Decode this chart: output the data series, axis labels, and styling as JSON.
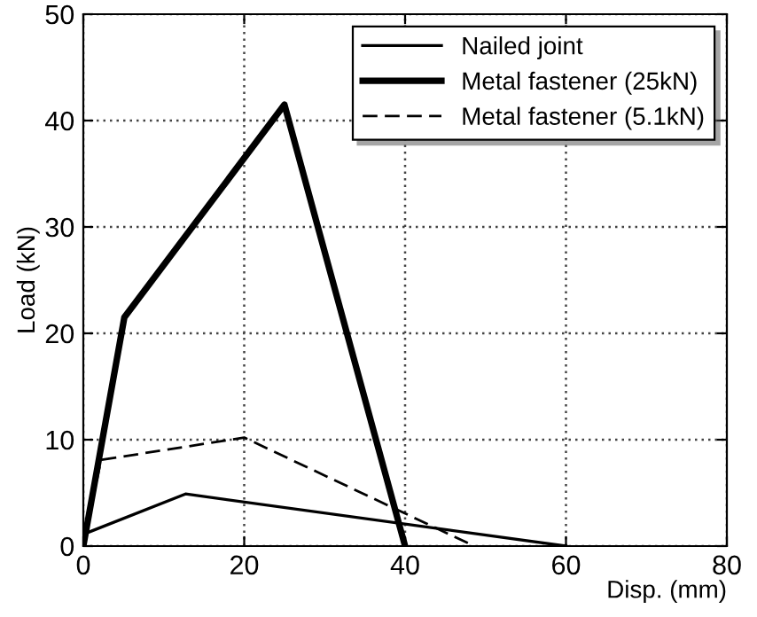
{
  "chart_data": {
    "type": "line",
    "xlabel": "Disp. (mm)",
    "ylabel": "Load (kN)",
    "xlim": [
      0,
      80
    ],
    "ylim": [
      0,
      50
    ],
    "xticks": [
      0,
      20,
      40,
      60,
      80
    ],
    "yticks": [
      0,
      10,
      20,
      30,
      40,
      50
    ],
    "grid": true,
    "legend": "top right",
    "marker": "none",
    "series": [
      {
        "name": "Nailed joint",
        "color": "#000000",
        "x": [
          0,
          0.3,
          12.7,
          60
        ],
        "values": [
          0,
          1.2,
          4.9,
          0
        ],
        "line_style": "solid"
      },
      {
        "name": "Metal fastener (25kN)",
        "color": "#000000",
        "x": [
          0,
          5.1,
          25,
          40
        ],
        "values": [
          0,
          21.5,
          41.5,
          0
        ],
        "line_style": "solid"
      },
      {
        "name": "Metal fastener (5.1kN)",
        "color": "#000000",
        "x": [
          0,
          2.2,
          20,
          48.6
        ],
        "values": [
          0,
          8.1,
          10.2,
          0
        ],
        "line_style": "dashed"
      }
    ]
  }
}
